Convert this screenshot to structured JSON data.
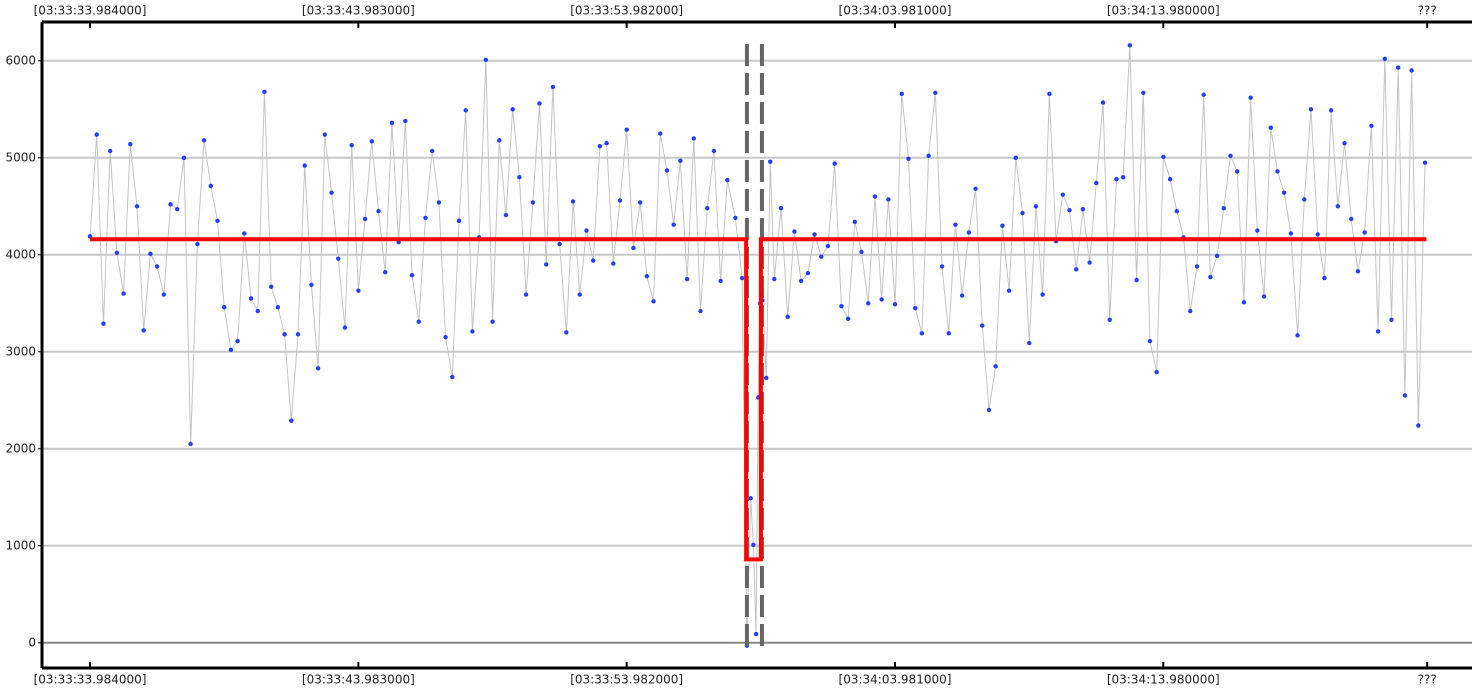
{
  "chart_data": {
    "type": "line",
    "xlim": [
      -1.79,
      51.5
    ],
    "ylim": [
      -260,
      6400
    ],
    "xticks": [
      {
        "value": 0,
        "label": "[03:33:33.984000]"
      },
      {
        "value": 9.999,
        "label": "[03:33:43.983000]"
      },
      {
        "value": 19.998,
        "label": "[03:33:53.982000]"
      },
      {
        "value": 29.997,
        "label": "[03:34:03.981000]"
      },
      {
        "value": 39.996,
        "label": "[03:34:13.980000]"
      },
      {
        "value": 49.83,
        "label": "???"
      }
    ],
    "yticks": [
      0,
      1000,
      2000,
      3000,
      4000,
      5000,
      6000
    ],
    "grid": true,
    "series": [
      {
        "color": "#1f3fff",
        "line_color": "#c4c4c4",
        "x": [
          0,
          0.25,
          0.5,
          0.75,
          1,
          1.25,
          1.5,
          1.75,
          2,
          2.25,
          2.5,
          2.75,
          3,
          3.25,
          3.5,
          3.75,
          4,
          4.25,
          4.5,
          4.75,
          5,
          5.25,
          5.5,
          5.75,
          6,
          6.25,
          6.5,
          6.75,
          7,
          7.25,
          7.5,
          7.75,
          8,
          8.25,
          8.5,
          8.75,
          9,
          9.25,
          9.5,
          9.75,
          10,
          10.25,
          10.5,
          10.75,
          11,
          11.25,
          11.5,
          11.75,
          12,
          12.25,
          12.5,
          12.75,
          13,
          13.25,
          13.5,
          13.75,
          14,
          14.25,
          14.5,
          14.75,
          15,
          15.25,
          15.5,
          15.75,
          16,
          16.25,
          16.5,
          16.75,
          17,
          17.25,
          17.5,
          17.75,
          18,
          18.25,
          18.5,
          18.75,
          19,
          19.25,
          19.5,
          19.75,
          20,
          20.25,
          20.5,
          20.75,
          21,
          21.25,
          21.5,
          21.75,
          22,
          22.25,
          22.5,
          22.75,
          23,
          23.25,
          23.5,
          23.75,
          24.05,
          24.3,
          24.48,
          24.62,
          24.72,
          24.82,
          24.9,
          24.97,
          25.06,
          25.2,
          25.35,
          25.5,
          25.75,
          26,
          26.25,
          26.5,
          26.75,
          27,
          27.25,
          27.5,
          27.75,
          28,
          28.25,
          28.5,
          28.75,
          29,
          29.25,
          29.5,
          29.75,
          30,
          30.25,
          30.5,
          30.75,
          31,
          31.25,
          31.5,
          31.75,
          32,
          32.25,
          32.5,
          32.75,
          33,
          33.25,
          33.5,
          33.75,
          34,
          34.25,
          34.5,
          34.75,
          35,
          35.25,
          35.5,
          35.75,
          36,
          36.25,
          36.5,
          36.75,
          37,
          37.25,
          37.5,
          37.75,
          38,
          38.25,
          38.5,
          38.75,
          39,
          39.25,
          39.5,
          39.75,
          40,
          40.25,
          40.5,
          40.75,
          41,
          41.25,
          41.5,
          41.75,
          42,
          42.25,
          42.5,
          42.75,
          43,
          43.25,
          43.5,
          43.75,
          44,
          44.25,
          44.5,
          44.75,
          45,
          45.25,
          45.5,
          45.75,
          46,
          46.25,
          46.5,
          46.75,
          47,
          47.25,
          47.5,
          47.75,
          48,
          48.25,
          48.5,
          48.75,
          49,
          49.25,
          49.5,
          49.75
        ],
        "values": [
          4190,
          5240,
          3290,
          5070,
          4020,
          3600,
          5140,
          4500,
          3220,
          4010,
          3880,
          3590,
          4520,
          4470,
          5000,
          2050,
          4110,
          5180,
          4710,
          4350,
          3460,
          3020,
          3110,
          4220,
          3550,
          3420,
          5680,
          3670,
          3460,
          3180,
          2290,
          3180,
          4920,
          3690,
          2830,
          5240,
          4640,
          3960,
          3250,
          5130,
          3630,
          4370,
          5170,
          4450,
          3820,
          5360,
          4130,
          5380,
          3790,
          3310,
          4380,
          5070,
          4540,
          3150,
          2740,
          4350,
          5490,
          3210,
          4180,
          6010,
          3310,
          5180,
          4410,
          5500,
          4800,
          3590,
          4540,
          5560,
          3900,
          5730,
          4110,
          3200,
          4550,
          3590,
          4250,
          3940,
          5120,
          5150,
          3910,
          4560,
          5290,
          4070,
          4540,
          3780,
          3520,
          5250,
          4870,
          4310,
          4970,
          3750,
          5200,
          3420,
          4480,
          5070,
          3730,
          4770,
          4380,
          3760,
          -30,
          1490,
          1010,
          90,
          2530,
          3500,
          3530,
          2730,
          4960,
          3750,
          4480,
          3360,
          4240,
          3730,
          3810,
          4210,
          3980,
          4090,
          4940,
          3470,
          3340,
          4340,
          4030,
          3500,
          4600,
          3540,
          4570,
          3490,
          5660,
          4990,
          3450,
          3190,
          5020,
          5670,
          3880,
          3190,
          4310,
          3580,
          4230,
          4680,
          3270,
          2400,
          2850,
          4300,
          3630,
          5000,
          4430,
          3090,
          4500,
          3590,
          5660,
          4140,
          4620,
          4460,
          3850,
          4470,
          3920,
          4740,
          5570,
          3330,
          4780,
          4800,
          6160,
          3740,
          5670,
          3110,
          2790,
          5010,
          4780,
          4450,
          4180,
          3420,
          3880,
          5650,
          3770,
          3990,
          4480,
          5020,
          4860,
          3510,
          5620,
          4250,
          3570,
          5310,
          4860,
          4640,
          4220,
          3170,
          4570,
          5500,
          4210,
          3760,
          5490,
          4500,
          5150,
          4370,
          3830,
          4230,
          5330,
          3210,
          6020,
          3330,
          5930,
          2550,
          5900,
          2240,
          4950
        ]
      }
    ],
    "lines": [
      {
        "color": "#ff0000",
        "x": [
          0,
          24.45,
          24.45,
          25.0,
          25.0,
          49.8
        ],
        "values": [
          4160,
          4160,
          860,
          860,
          4160,
          4160
        ]
      }
    ],
    "vlines": [
      24.48,
      25.04
    ]
  }
}
